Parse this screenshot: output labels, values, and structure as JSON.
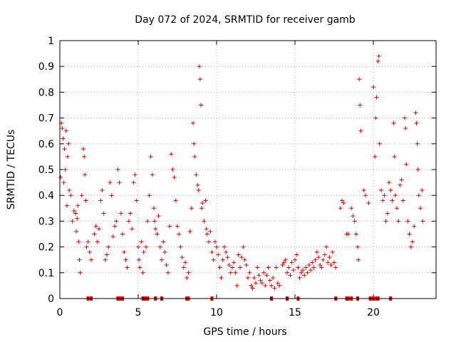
{
  "chart_data": {
    "type": "scatter",
    "title": "Day 072 of 2024, SRMTID for receiver gamb",
    "xlabel": "GPS time / hours",
    "ylabel": "SRMTID / TECUs",
    "xlim": [
      0,
      24
    ],
    "ylim": [
      0,
      1
    ],
    "x_ticks": [
      "0",
      "5",
      "10",
      "15",
      "20"
    ],
    "y_ticks": [
      "0",
      "0.1",
      "0.2",
      "0.3",
      "0.4",
      "0.5",
      "0.6",
      "0.7",
      "0.8",
      "0.9",
      "1"
    ],
    "grid": true,
    "marker": "+",
    "color": "#e00000",
    "series": [
      {
        "name": "SRMTID",
        "points": [
          [
            0.05,
            0.47
          ],
          [
            0.1,
            0.68
          ],
          [
            0.15,
            0.66
          ],
          [
            0.2,
            0.62
          ],
          [
            0.25,
            0.45
          ],
          [
            0.3,
            0.58
          ],
          [
            0.35,
            0.5
          ],
          [
            0.4,
            0.65
          ],
          [
            0.45,
            0.36
          ],
          [
            0.5,
            0.55
          ],
          [
            0.55,
            0.6
          ],
          [
            0.6,
            0.42
          ],
          [
            0.7,
            0.4
          ],
          [
            0.8,
            0.3
          ],
          [
            0.9,
            0.34
          ],
          [
            1.0,
            0.33
          ],
          [
            1.05,
            0.26
          ],
          [
            1.1,
            0.31
          ],
          [
            1.15,
            0.36
          ],
          [
            1.2,
            0.22
          ],
          [
            1.25,
            0.15
          ],
          [
            1.3,
            0.1
          ],
          [
            1.4,
            0.4
          ],
          [
            1.5,
            0.58
          ],
          [
            1.55,
            0.55
          ],
          [
            1.6,
            0.48
          ],
          [
            1.65,
            0.38
          ],
          [
            1.7,
            0.2
          ],
          [
            1.8,
            0.22
          ],
          [
            1.9,
            0.18
          ],
          [
            2.0,
            0.15
          ],
          [
            2.2,
            0.25
          ],
          [
            2.3,
            0.28
          ],
          [
            2.4,
            0.22
          ],
          [
            2.5,
            0.27
          ],
          [
            2.6,
            0.38
          ],
          [
            2.7,
            0.42
          ],
          [
            2.8,
            0.33
          ],
          [
            2.9,
            0.15
          ],
          [
            3.0,
            0.17
          ],
          [
            3.1,
            0.2
          ],
          [
            3.2,
            0.45
          ],
          [
            3.3,
            0.4
          ],
          [
            3.4,
            0.24
          ],
          [
            3.5,
            0.28
          ],
          [
            3.6,
            0.3
          ],
          [
            3.7,
            0.5
          ],
          [
            3.8,
            0.45
          ],
          [
            3.9,
            0.33
          ],
          [
            4.0,
            0.25
          ],
          [
            4.1,
            0.18
          ],
          [
            4.2,
            0.15
          ],
          [
            4.3,
            0.12
          ],
          [
            4.4,
            0.3
          ],
          [
            4.5,
            0.33
          ],
          [
            4.6,
            0.27
          ],
          [
            4.7,
            0.45
          ],
          [
            4.8,
            0.48
          ],
          [
            4.9,
            0.38
          ],
          [
            5.0,
            0.2
          ],
          [
            5.05,
            0.15
          ],
          [
            5.1,
            0.12
          ],
          [
            5.2,
            0.22
          ],
          [
            5.3,
            0.1
          ],
          [
            5.35,
            0.18
          ],
          [
            5.5,
            0.2
          ],
          [
            5.6,
            0.3
          ],
          [
            5.7,
            0.4
          ],
          [
            5.8,
            0.55
          ],
          [
            5.9,
            0.48
          ],
          [
            6.0,
            0.35
          ],
          [
            6.05,
            0.3
          ],
          [
            6.1,
            0.27
          ],
          [
            6.2,
            0.25
          ],
          [
            6.3,
            0.32
          ],
          [
            6.4,
            0.2
          ],
          [
            6.5,
            0.15
          ],
          [
            6.6,
            0.22
          ],
          [
            6.7,
            0.18
          ],
          [
            6.8,
            0.13
          ],
          [
            6.9,
            0.1
          ],
          [
            7.0,
            0.28
          ],
          [
            7.1,
            0.56
          ],
          [
            7.2,
            0.5
          ],
          [
            7.3,
            0.47
          ],
          [
            7.4,
            0.38
          ],
          [
            7.5,
            0.28
          ],
          [
            7.6,
            0.25
          ],
          [
            7.7,
            0.2
          ],
          [
            7.8,
            0.16
          ],
          [
            7.9,
            0.12
          ],
          [
            8.0,
            0.14
          ],
          [
            8.1,
            0.08
          ],
          [
            8.2,
            0.1
          ],
          [
            8.3,
            0.26
          ],
          [
            8.4,
            0.35
          ],
          [
            8.5,
            0.68
          ],
          [
            8.55,
            0.6
          ],
          [
            8.6,
            0.55
          ],
          [
            8.7,
            0.48
          ],
          [
            8.8,
            0.44
          ],
          [
            8.85,
            0.42
          ],
          [
            8.9,
            0.9
          ],
          [
            8.95,
            0.85
          ],
          [
            9.0,
            0.75
          ],
          [
            9.05,
            0.35
          ],
          [
            9.1,
            0.37
          ],
          [
            9.2,
            0.3
          ],
          [
            9.3,
            0.38
          ],
          [
            9.35,
            0.27
          ],
          [
            9.4,
            0.25
          ],
          [
            9.5,
            0.22
          ],
          [
            9.6,
            0.26
          ],
          [
            9.7,
            0.18
          ],
          [
            9.8,
            0.15
          ],
          [
            9.9,
            0.22
          ],
          [
            10.0,
            0.2
          ],
          [
            10.1,
            0.17
          ],
          [
            10.2,
            0.12
          ],
          [
            10.3,
            0.08
          ],
          [
            10.4,
            0.15
          ],
          [
            10.5,
            0.2
          ],
          [
            10.6,
            0.18
          ],
          [
            10.7,
            0.16
          ],
          [
            10.8,
            0.13
          ],
          [
            10.9,
            0.1
          ],
          [
            11.0,
            0.12
          ],
          [
            11.1,
            0.14
          ],
          [
            11.2,
            0.1
          ],
          [
            11.3,
            0.05
          ],
          [
            11.4,
            0.17
          ],
          [
            11.5,
            0.12
          ],
          [
            11.6,
            0.16
          ],
          [
            11.7,
            0.2
          ],
          [
            11.8,
            0.15
          ],
          [
            11.9,
            0.13
          ],
          [
            12.0,
            0.08
          ],
          [
            12.1,
            0.1
          ],
          [
            12.2,
            0.05
          ],
          [
            12.3,
            0.04
          ],
          [
            12.4,
            0.08
          ],
          [
            12.5,
            0.06
          ],
          [
            12.6,
            0.12
          ],
          [
            12.7,
            0.09
          ],
          [
            12.8,
            0.07
          ],
          [
            12.9,
            0.06
          ],
          [
            13.0,
            0.1
          ],
          [
            13.1,
            0.05
          ],
          [
            13.2,
            0.09
          ],
          [
            13.3,
            0.12
          ],
          [
            13.4,
            0.07
          ],
          [
            13.5,
            0.05
          ],
          [
            13.6,
            0.08
          ],
          [
            13.7,
            0.04
          ],
          [
            13.8,
            0.12
          ],
          [
            13.9,
            0.06
          ],
          [
            14.0,
            0.05
          ],
          [
            14.2,
            0.13
          ],
          [
            14.3,
            0.14
          ],
          [
            14.4,
            0.15
          ],
          [
            14.5,
            0.1
          ],
          [
            14.6,
            0.12
          ],
          [
            14.7,
            0.09
          ],
          [
            14.8,
            0.14
          ],
          [
            14.9,
            0.11
          ],
          [
            15.0,
            0.15
          ],
          [
            15.1,
            0.17
          ],
          [
            15.2,
            0.12
          ],
          [
            15.3,
            0.08
          ],
          [
            15.4,
            0.1
          ],
          [
            15.5,
            0.11
          ],
          [
            15.6,
            0.09
          ],
          [
            15.7,
            0.12
          ],
          [
            15.8,
            0.1
          ],
          [
            15.9,
            0.13
          ],
          [
            16.0,
            0.11
          ],
          [
            16.1,
            0.14
          ],
          [
            16.2,
            0.12
          ],
          [
            16.3,
            0.15
          ],
          [
            16.4,
            0.18
          ],
          [
            16.5,
            0.16
          ],
          [
            16.6,
            0.13
          ],
          [
            16.7,
            0.12
          ],
          [
            16.8,
            0.15
          ],
          [
            16.9,
            0.17
          ],
          [
            17.0,
            0.2
          ],
          [
            17.1,
            0.14
          ],
          [
            17.2,
            0.16
          ],
          [
            17.3,
            0.13
          ],
          [
            17.4,
            0.18
          ],
          [
            17.5,
            0.14
          ],
          [
            17.6,
            0.12
          ],
          [
            17.9,
            0.35
          ],
          [
            18.0,
            0.38
          ],
          [
            18.1,
            0.37
          ],
          [
            18.3,
            0.25
          ],
          [
            18.4,
            0.25
          ],
          [
            18.6,
            0.35
          ],
          [
            18.7,
            0.32
          ],
          [
            18.8,
            0.3
          ],
          [
            18.9,
            0.25
          ],
          [
            19.0,
            0.2
          ],
          [
            19.05,
            0.15
          ],
          [
            19.1,
            0.85
          ],
          [
            19.15,
            0.75
          ],
          [
            19.2,
            0.65
          ],
          [
            19.4,
            0.42
          ],
          [
            19.5,
            0.4
          ],
          [
            19.7,
            0.37
          ],
          [
            20.0,
            0.82
          ],
          [
            20.1,
            0.55
          ],
          [
            20.15,
            0.7
          ],
          [
            20.2,
            0.78
          ],
          [
            20.3,
            0.92
          ],
          [
            20.35,
            0.94
          ],
          [
            20.4,
            0.6
          ],
          [
            20.5,
            0.42
          ],
          [
            20.6,
            0.38
          ],
          [
            20.7,
            0.4
          ],
          [
            20.8,
            0.3
          ],
          [
            20.9,
            0.33
          ],
          [
            21.0,
            0.45
          ],
          [
            21.1,
            0.42
          ],
          [
            21.2,
            0.38
          ],
          [
            21.3,
            0.68
          ],
          [
            21.35,
            0.55
          ],
          [
            21.4,
            0.4
          ],
          [
            21.5,
            0.35
          ],
          [
            21.6,
            0.3
          ],
          [
            21.7,
            0.44
          ],
          [
            21.8,
            0.46
          ],
          [
            21.9,
            0.38
          ],
          [
            22.0,
            0.7
          ],
          [
            22.05,
            0.66
          ],
          [
            22.1,
            0.52
          ],
          [
            22.2,
            0.3
          ],
          [
            22.3,
            0.25
          ],
          [
            22.4,
            0.2
          ],
          [
            22.5,
            0.22
          ],
          [
            22.6,
            0.28
          ],
          [
            22.7,
            0.72
          ],
          [
            22.75,
            0.68
          ],
          [
            22.8,
            0.6
          ],
          [
            22.85,
            0.5
          ],
          [
            22.9,
            0.4
          ],
          [
            23.0,
            0.35
          ],
          [
            23.1,
            0.42
          ],
          [
            23.15,
            0.3
          ]
        ]
      }
    ],
    "zero_line_markers": [
      1.8,
      2.0,
      3.7,
      3.8,
      3.9,
      4.0,
      5.3,
      5.4,
      5.5,
      5.6,
      6.1,
      6.5,
      8.1,
      8.2,
      9.7,
      13.5,
      14.5,
      15.2,
      17.6,
      18.3,
      18.4,
      18.6,
      19.0,
      19.8,
      20.0,
      20.2,
      20.3,
      21.1
    ]
  }
}
